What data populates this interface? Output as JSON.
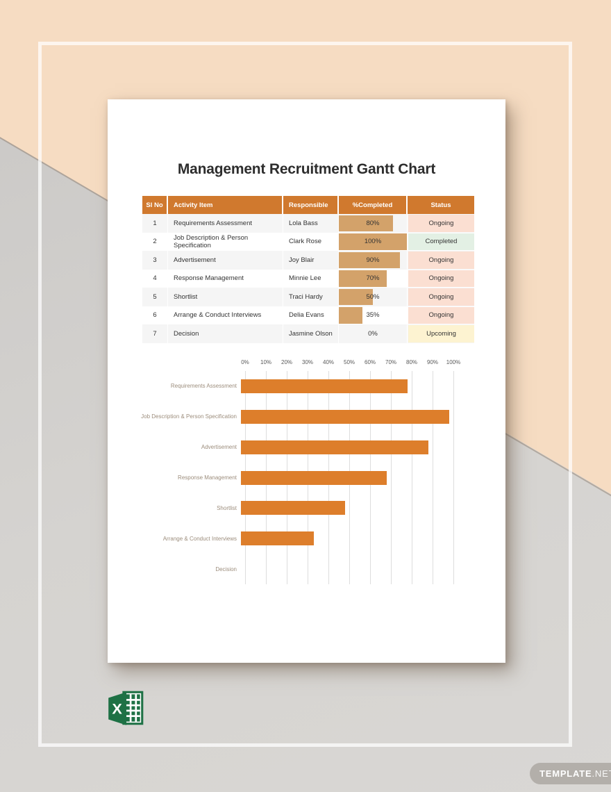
{
  "page": {
    "title": "Management Recruitment Gantt Chart"
  },
  "table": {
    "headers": [
      "Sl No",
      "Activity Item",
      "Responsible",
      "%Completed",
      "Status"
    ],
    "rows": [
      {
        "sl_no": "1",
        "activity": "Requirements Assessment",
        "responsible": "Lola Bass",
        "pct_completed": 80,
        "pct_label": "80%",
        "status": "Ongoing"
      },
      {
        "sl_no": "2",
        "activity": "Job Description & Person Specification",
        "responsible": "Clark Rose",
        "pct_completed": 100,
        "pct_label": "100%",
        "status": "Completed"
      },
      {
        "sl_no": "3",
        "activity": "Advertisement",
        "responsible": "Joy Blair",
        "pct_completed": 90,
        "pct_label": "90%",
        "status": "Ongoing"
      },
      {
        "sl_no": "4",
        "activity": "Response Management",
        "responsible": "Minnie Lee",
        "pct_completed": 70,
        "pct_label": "70%",
        "status": "Ongoing"
      },
      {
        "sl_no": "5",
        "activity": "Shortlist",
        "responsible": "Traci Hardy",
        "pct_completed": 50,
        "pct_label": "50%",
        "status": "Ongoing"
      },
      {
        "sl_no": "6",
        "activity": "Arrange & Conduct Interviews",
        "responsible": "Delia Evans",
        "pct_completed": 35,
        "pct_label": "35%",
        "status": "Ongoing"
      },
      {
        "sl_no": "7",
        "activity": "Decision",
        "responsible": "Jasmine Olson",
        "pct_completed": 0,
        "pct_label": "0%",
        "status": "Upcoming"
      }
    ],
    "status_colors": {
      "Ongoing": "#FBDFD2",
      "Completed": "#E3F0E4",
      "Upcoming": "#FDF3D1"
    }
  },
  "chart_data": {
    "type": "bar",
    "orientation": "horizontal",
    "title": "",
    "categories": [
      "Requirements Assessment",
      "Job Description & Person Specification",
      "Advertisement",
      "Response Management",
      "Shortlist",
      "Arrange & Conduct Interviews",
      "Decision"
    ],
    "values": [
      80,
      100,
      90,
      70,
      50,
      35,
      0
    ],
    "x_ticks": [
      "0%",
      "10%",
      "20%",
      "30%",
      "40%",
      "50%",
      "60%",
      "70%",
      "80%",
      "90%",
      "100%"
    ],
    "xlim": [
      0,
      100
    ],
    "grid": true,
    "legend": false,
    "axis_position": "top",
    "bar_color": "#DD7E2B"
  },
  "colors": {
    "header_orange": "#D0792E",
    "table_bar_tan": "#D3A26A",
    "chart_bar_orange": "#DD7E2B",
    "background_peach": "#F6DCC2",
    "background_gray": "#D5D3D0",
    "excel_green": "#1E7145"
  },
  "watermark": {
    "brand": "TEMPLATE",
    "tld": ".NET"
  }
}
